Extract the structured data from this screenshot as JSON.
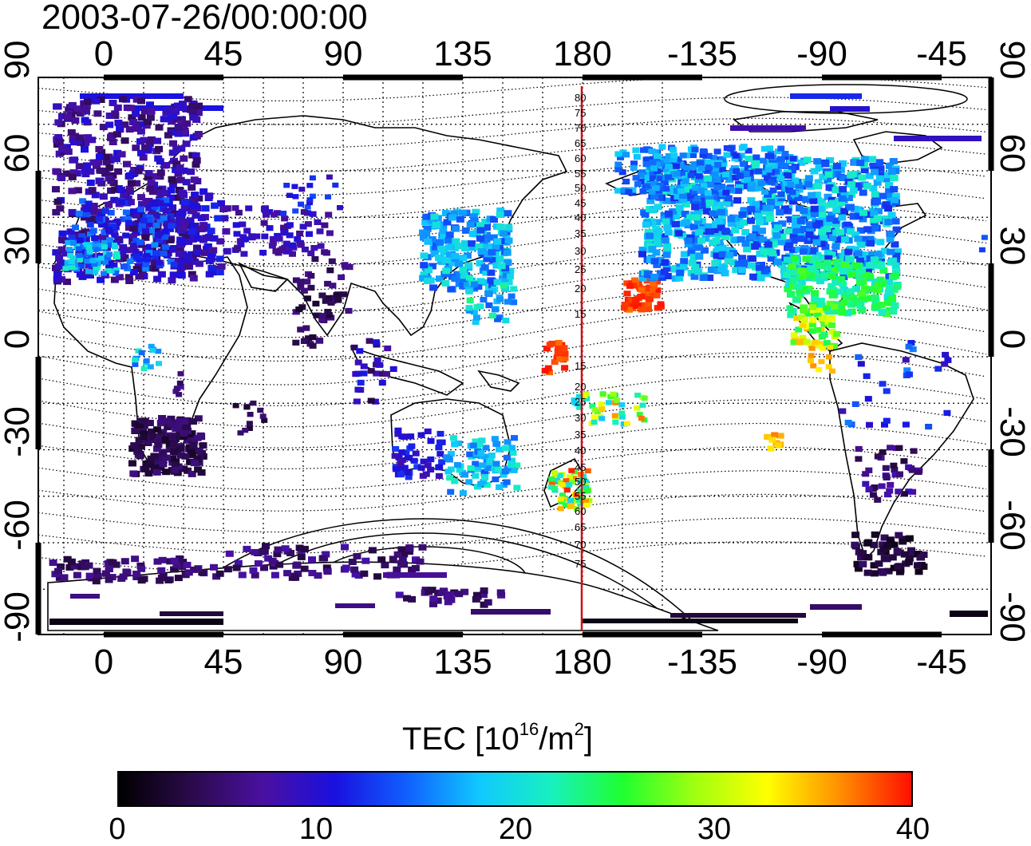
{
  "timestamp": "2003-07-26/00:00:00",
  "axes": {
    "top_ticks": [
      "0",
      "45",
      "90",
      "135",
      "180",
      "-135",
      "-90",
      "-45"
    ],
    "bottom_ticks": [
      "0",
      "45",
      "90",
      "135",
      "180",
      "-135",
      "-90",
      "-45"
    ],
    "left_ticks": [
      "90",
      "60",
      "30",
      "0",
      "-30",
      "-60",
      "-90"
    ],
    "right_ticks": [
      "90",
      "60",
      "30",
      "0",
      "-30",
      "-60",
      "-90"
    ]
  },
  "contour_labels": [
    "80",
    "75",
    "70",
    "65",
    "60",
    "55",
    "50",
    "45",
    "40",
    "35",
    "30",
    "25",
    "20",
    "15",
    "15",
    "20",
    "25",
    "30",
    "35",
    "40",
    "45",
    "50",
    "55",
    "60",
    "65",
    "70",
    "75"
  ],
  "colorbar": {
    "title_main": "TEC  [10",
    "title_exp1": "16",
    "title_mid": "/m",
    "title_exp2": "2",
    "title_end": "]",
    "ticks": [
      "0",
      "10",
      "20",
      "30",
      "40"
    ],
    "range": [
      0,
      40
    ],
    "colors": [
      "#000000",
      "#2a0a4a",
      "#4a10a0",
      "#1a10e0",
      "#1060ff",
      "#10c8ff",
      "#18f0c0",
      "#20ff30",
      "#a0ff10",
      "#ffff00",
      "#ff9000",
      "#ff1000"
    ]
  },
  "map_style": {
    "meridian_color": "#d01010",
    "meridian_label": "180"
  }
}
